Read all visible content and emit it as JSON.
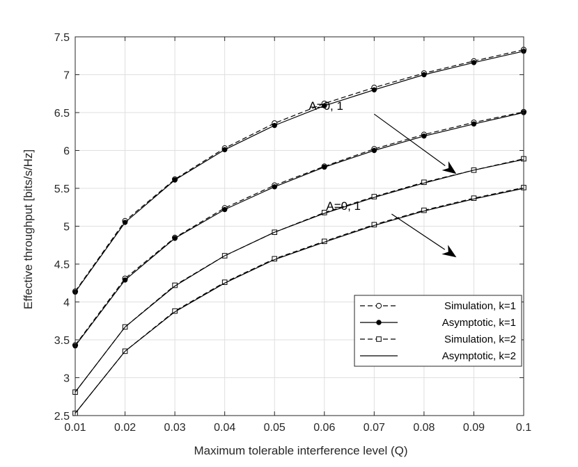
{
  "chart_data": {
    "type": "line",
    "title": "",
    "xlabel": "Maximum tolerable interference level (Q)",
    "ylabel": "Effective throughput [bits/s/Hz]",
    "xlim": [
      0.01,
      0.1
    ],
    "ylim": [
      2.5,
      7.5
    ],
    "xticks": [
      0.01,
      0.02,
      0.03,
      0.04,
      0.05,
      0.06,
      0.07,
      0.08,
      0.09,
      0.1
    ],
    "xtick_labels": [
      "0.01",
      "0.02",
      "0.03",
      "0.04",
      "0.05",
      "0.06",
      "0.07",
      "0.08",
      "0.09",
      "0.1"
    ],
    "yticks": [
      2.5,
      3,
      3.5,
      4,
      4.5,
      5,
      5.5,
      6,
      6.5,
      7,
      7.5
    ],
    "ytick_labels": [
      "2.5",
      "3",
      "3.5",
      "4",
      "4.5",
      "5",
      "5.5",
      "6",
      "6.5",
      "7",
      "7.5"
    ],
    "grid": true,
    "legend_position": "bottom-right",
    "x": [
      0.01,
      0.02,
      0.03,
      0.04,
      0.05,
      0.06,
      0.07,
      0.08,
      0.09,
      0.1
    ],
    "series": [
      {
        "name": "Simulation, k=1",
        "group": "k1_A0",
        "style": "dashed",
        "marker": "circle",
        "color": "#000000",
        "values": [
          4.14,
          5.07,
          5.62,
          6.03,
          6.36,
          6.62,
          6.83,
          7.02,
          7.18,
          7.33
        ]
      },
      {
        "group": "k1_A1",
        "style": "dashed",
        "marker": "circle",
        "color": "#000000",
        "values": [
          3.43,
          4.31,
          4.85,
          5.24,
          5.54,
          5.79,
          6.02,
          6.21,
          6.37,
          6.51
        ]
      },
      {
        "name": "Asymptotic, k=1",
        "group": "k1_A0",
        "style": "solid",
        "marker": "dot",
        "color": "#000000",
        "values": [
          4.13,
          5.05,
          5.61,
          6.01,
          6.33,
          6.59,
          6.8,
          7.0,
          7.16,
          7.31
        ]
      },
      {
        "group": "k1_A1",
        "style": "solid",
        "marker": "dot",
        "color": "#000000",
        "values": [
          3.42,
          4.29,
          4.84,
          5.22,
          5.52,
          5.78,
          6.0,
          6.19,
          6.35,
          6.5
        ]
      },
      {
        "name": "Simulation, k=2",
        "group": "k2_A0",
        "style": "dashed",
        "marker": "square",
        "color": "#000000",
        "values": [
          2.81,
          3.67,
          4.22,
          4.61,
          4.92,
          5.18,
          5.39,
          5.58,
          5.74,
          5.89
        ]
      },
      {
        "group": "k2_A1",
        "style": "dashed",
        "marker": "square",
        "color": "#000000",
        "values": [
          2.53,
          3.35,
          3.88,
          4.26,
          4.57,
          4.8,
          5.02,
          5.21,
          5.37,
          5.51
        ]
      },
      {
        "name": "Asymptotic, k=2",
        "group": "k2_A0",
        "style": "solid",
        "marker": "none",
        "color": "#000000",
        "values": [
          2.81,
          3.67,
          4.21,
          4.61,
          4.92,
          5.17,
          5.38,
          5.57,
          5.74,
          5.88
        ]
      },
      {
        "group": "k2_A1",
        "style": "solid",
        "marker": "none",
        "color": "#000000",
        "values": [
          2.53,
          3.35,
          3.87,
          4.25,
          4.56,
          4.79,
          5.01,
          5.2,
          5.36,
          5.5
        ]
      }
    ],
    "legend": [
      {
        "label": "Simulation, k=1",
        "style": "dashed",
        "marker": "circle"
      },
      {
        "label": "Asymptotic, k=1",
        "style": "solid",
        "marker": "dot"
      },
      {
        "label": "Simulation, k=2",
        "style": "dashed",
        "marker": "square"
      },
      {
        "label": "Asymptotic, k=2",
        "style": "solid",
        "marker": "none"
      }
    ],
    "annotations": [
      {
        "text": "A=0, 1",
        "arrow_from": [
          0.07,
          6.48
        ],
        "arrow_to": [
          0.0865,
          5.69
        ]
      },
      {
        "text": "A=0, 1",
        "arrow_from": [
          0.0735,
          5.16
        ],
        "arrow_to": [
          0.0865,
          4.59
        ]
      }
    ]
  }
}
